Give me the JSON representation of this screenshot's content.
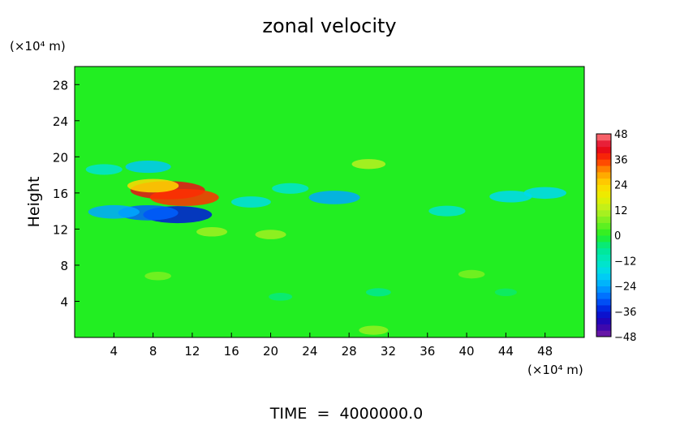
{
  "chart_data": {
    "type": "heatmap",
    "title": "zonal velocity",
    "ylabel": "Height",
    "xlabel": "",
    "x_unit_label": "(×10⁴ m)",
    "y_unit_label": "(×10⁴ m)",
    "x_range": [
      0,
      52
    ],
    "y_range": [
      0,
      30
    ],
    "x_ticks": [
      4,
      8,
      12,
      16,
      20,
      24,
      28,
      32,
      36,
      40,
      44,
      48
    ],
    "y_ticks": [
      4,
      8,
      12,
      16,
      20,
      24,
      28
    ],
    "colorbar": {
      "min": -48,
      "max": 48,
      "levels": [
        48,
        36,
        24,
        12,
        0,
        -12,
        -24,
        -36,
        -48
      ]
    },
    "footer": "TIME  =  4000000.0",
    "features": [
      {
        "x": 9.5,
        "y": 16.3,
        "value": 40
      },
      {
        "x": 11.2,
        "y": 15.5,
        "value": 36
      },
      {
        "x": 8.0,
        "y": 16.8,
        "value": 24
      },
      {
        "x": 10.5,
        "y": 13.6,
        "value": -36
      },
      {
        "x": 7.5,
        "y": 13.8,
        "value": -30
      },
      {
        "x": 4.0,
        "y": 13.9,
        "value": -24
      },
      {
        "x": 7.5,
        "y": 18.9,
        "value": -20
      },
      {
        "x": 3.0,
        "y": 18.6,
        "value": -14
      },
      {
        "x": 26.5,
        "y": 15.5,
        "value": -24
      },
      {
        "x": 18.0,
        "y": 15.0,
        "value": -16
      },
      {
        "x": 22.0,
        "y": 16.5,
        "value": -14
      },
      {
        "x": 38.0,
        "y": 14.0,
        "value": -14
      },
      {
        "x": 48.0,
        "y": 16.0,
        "value": -18
      },
      {
        "x": 44.5,
        "y": 15.6,
        "value": -18
      },
      {
        "x": 30.0,
        "y": 19.2,
        "value": 12
      },
      {
        "x": 20.0,
        "y": 11.4,
        "value": 10
      },
      {
        "x": 14.0,
        "y": 11.7,
        "value": 10
      },
      {
        "x": 8.5,
        "y": 6.8,
        "value": 7
      },
      {
        "x": 40.5,
        "y": 7.0,
        "value": 7
      },
      {
        "x": 30.5,
        "y": 0.8,
        "value": 9
      },
      {
        "x": 31.0,
        "y": 5.0,
        "value": -6
      },
      {
        "x": 21.0,
        "y": 4.5,
        "value": -5
      },
      {
        "x": 44.0,
        "y": 5.0,
        "value": -4
      }
    ]
  }
}
